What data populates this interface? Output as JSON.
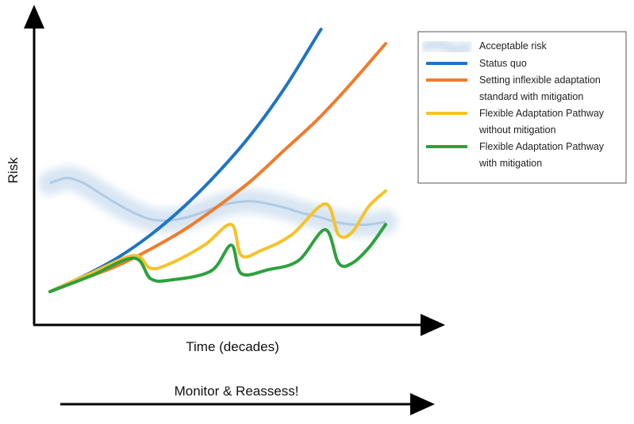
{
  "chart_data": {
    "type": "line",
    "title": "",
    "xlabel": "Time (decades)",
    "ylabel": "Risk",
    "axis_tick_labels": "none",
    "grid": false,
    "legend_position": "top-right",
    "series": [
      {
        "name": "Acceptable risk",
        "color": "#a9c6e3",
        "style": "band",
        "points": [
          [
            0.0,
            0.42
          ],
          [
            0.05,
            0.44
          ],
          [
            0.1,
            0.42
          ],
          [
            0.15,
            0.38
          ],
          [
            0.2,
            0.34
          ],
          [
            0.25,
            0.305
          ],
          [
            0.3,
            0.28
          ],
          [
            0.35,
            0.275
          ],
          [
            0.4,
            0.285
          ],
          [
            0.45,
            0.305
          ],
          [
            0.5,
            0.33
          ],
          [
            0.55,
            0.345
          ],
          [
            0.6,
            0.35
          ],
          [
            0.65,
            0.34
          ],
          [
            0.7,
            0.325
          ],
          [
            0.75,
            0.305
          ],
          [
            0.8,
            0.29
          ],
          [
            0.85,
            0.27
          ],
          [
            0.9,
            0.26
          ],
          [
            0.95,
            0.26
          ],
          [
            1.0,
            0.27
          ]
        ]
      },
      {
        "name": "Status quo",
        "color": "#1f74c4",
        "points": [
          [
            0.0,
            0.0
          ],
          [
            0.1,
            0.06
          ],
          [
            0.2,
            0.13
          ],
          [
            0.3,
            0.22
          ],
          [
            0.4,
            0.33
          ],
          [
            0.5,
            0.46
          ],
          [
            0.6,
            0.61
          ],
          [
            0.7,
            0.79
          ],
          [
            0.8,
            1.0
          ],
          [
            0.8,
            1.0
          ]
        ]
      },
      {
        "name": "Setting inflexible adaptation standard with mitigation",
        "lines": [
          "Setting inflexible adaptation",
          "standard with mitigation"
        ],
        "color": "#f07b2c",
        "points": [
          [
            0.0,
            0.0
          ],
          [
            0.1,
            0.05
          ],
          [
            0.2,
            0.1
          ],
          [
            0.3,
            0.165
          ],
          [
            0.4,
            0.24
          ],
          [
            0.5,
            0.33
          ],
          [
            0.6,
            0.43
          ],
          [
            0.7,
            0.55
          ],
          [
            0.8,
            0.67
          ],
          [
            0.9,
            0.81
          ],
          [
            1.0,
            0.96
          ]
        ]
      },
      {
        "name": "Flexible Adaptation Pathway without mitigation",
        "lines": [
          "Flexible Adaptation Pathway",
          "without mitigation"
        ],
        "color": "#f6c22a",
        "points": [
          [
            0.0,
            0.0
          ],
          [
            0.12,
            0.07
          ],
          [
            0.25,
            0.14
          ],
          [
            0.3,
            0.09
          ],
          [
            0.36,
            0.11
          ],
          [
            0.46,
            0.18
          ],
          [
            0.54,
            0.26
          ],
          [
            0.57,
            0.14
          ],
          [
            0.63,
            0.16
          ],
          [
            0.72,
            0.22
          ],
          [
            0.82,
            0.34
          ],
          [
            0.86,
            0.22
          ],
          [
            0.9,
            0.23
          ],
          [
            0.95,
            0.33
          ],
          [
            1.0,
            0.39
          ]
        ]
      },
      {
        "name": "Flexible Adaptation Pathway with mitigation",
        "lines": [
          "Flexible Adaptation Pathway",
          "with mitigation"
        ],
        "color": "#2da13d",
        "points": [
          [
            0.0,
            0.0
          ],
          [
            0.12,
            0.06
          ],
          [
            0.25,
            0.13
          ],
          [
            0.3,
            0.05
          ],
          [
            0.36,
            0.045
          ],
          [
            0.48,
            0.08
          ],
          [
            0.54,
            0.18
          ],
          [
            0.57,
            0.07
          ],
          [
            0.65,
            0.085
          ],
          [
            0.74,
            0.12
          ],
          [
            0.82,
            0.24
          ],
          [
            0.86,
            0.11
          ],
          [
            0.9,
            0.11
          ],
          [
            0.95,
            0.17
          ],
          [
            1.0,
            0.26
          ]
        ]
      }
    ]
  },
  "banner": {
    "label": "Monitor & Reassess!"
  }
}
